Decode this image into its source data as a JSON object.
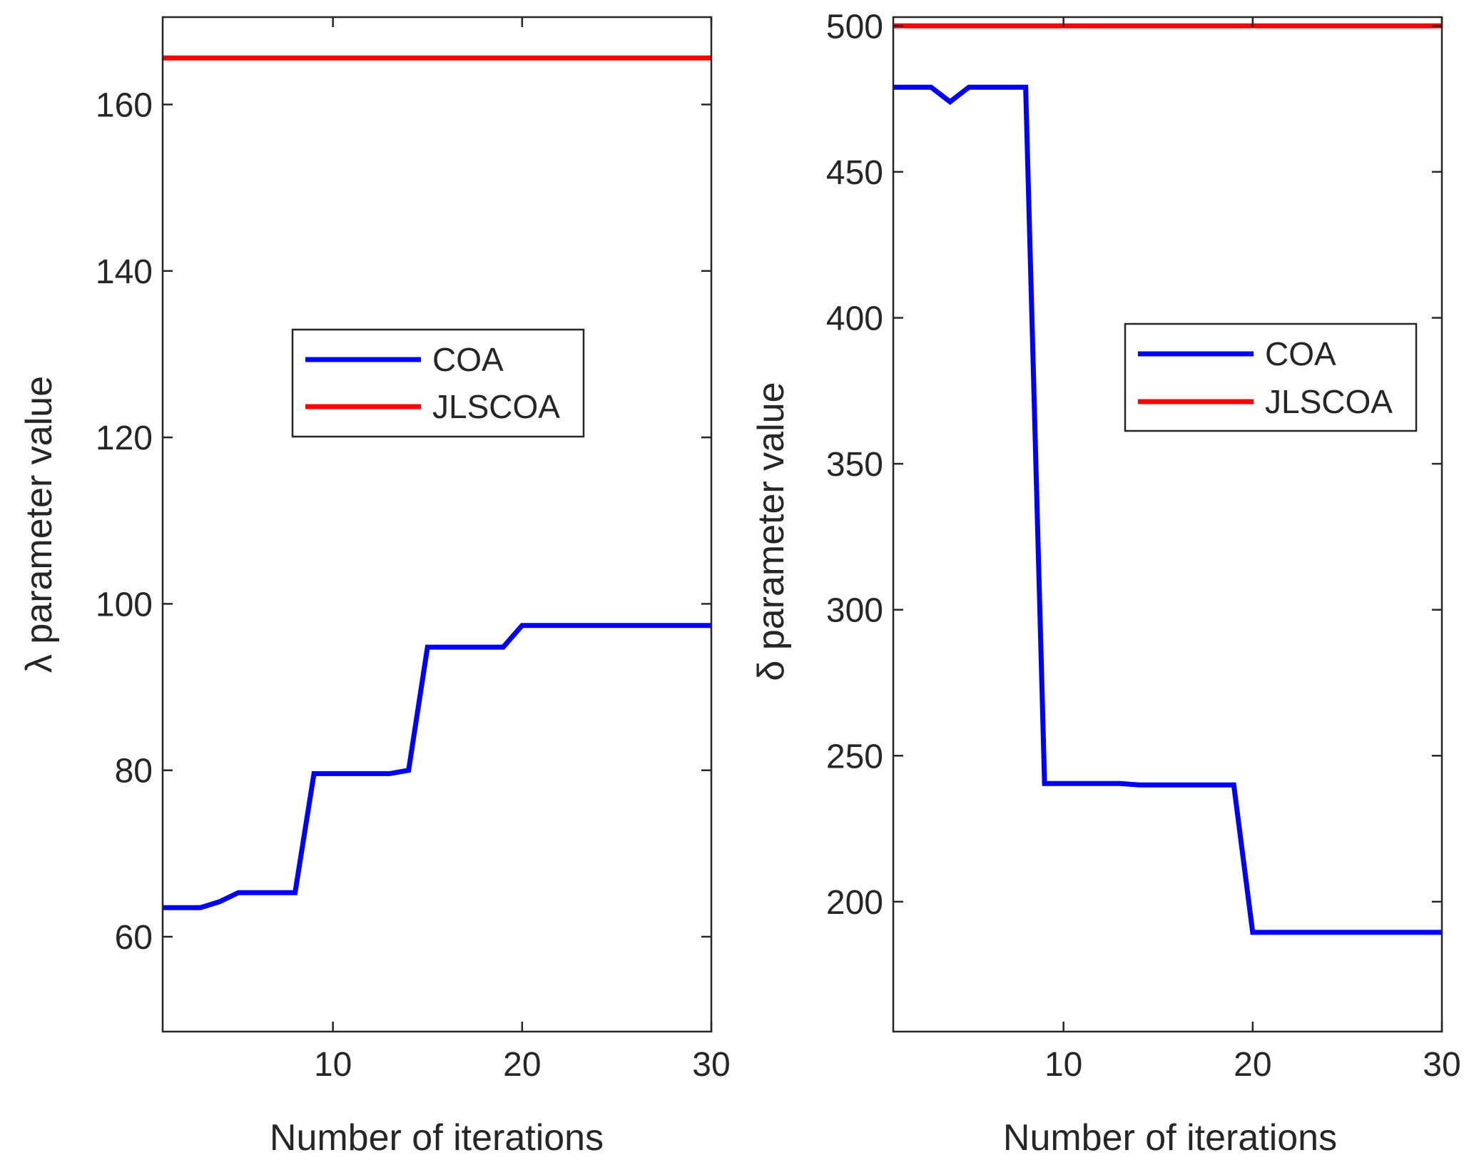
{
  "chart_data": [
    {
      "type": "line",
      "xlabel": "Number of iterations",
      "ylabel": "λ parameter value",
      "xlim": [
        1,
        30
      ],
      "ylim": [
        48.6,
        170.5
      ],
      "xticks": [
        10,
        20,
        30
      ],
      "yticks": [
        60,
        80,
        100,
        120,
        140,
        160
      ],
      "legend_location": "center-right",
      "series": [
        {
          "name": "COA",
          "color": "#0000ff",
          "x": [
            1,
            2,
            3,
            4,
            5,
            6,
            7,
            8,
            9,
            10,
            11,
            12,
            13,
            14,
            15,
            16,
            17,
            18,
            19,
            20,
            21,
            22,
            23,
            24,
            25,
            26,
            27,
            28,
            29,
            30
          ],
          "y": [
            63.5,
            63.5,
            63.5,
            64.2,
            65.3,
            65.3,
            65.3,
            65.3,
            79.6,
            79.6,
            79.6,
            79.6,
            79.6,
            80.0,
            94.8,
            94.8,
            94.8,
            94.8,
            94.8,
            97.4,
            97.4,
            97.4,
            97.4,
            97.4,
            97.4,
            97.4,
            97.4,
            97.4,
            97.4,
            97.4
          ]
        },
        {
          "name": "JLSCOA",
          "color": "#ff0000",
          "x": [
            1,
            30
          ],
          "y": [
            165.6,
            165.6
          ]
        }
      ]
    },
    {
      "type": "line",
      "xlabel": "Number of iterations",
      "ylabel": "δ parameter value",
      "xlim": [
        1,
        30
      ],
      "ylim": [
        155.5,
        503
      ],
      "xticks": [
        10,
        20,
        30
      ],
      "yticks": [
        200,
        250,
        300,
        350,
        400,
        450,
        500
      ],
      "legend_location": "center-right",
      "series": [
        {
          "name": "COA",
          "color": "#0000ff",
          "x": [
            1,
            2,
            3,
            4,
            5,
            6,
            7,
            8,
            9,
            10,
            11,
            12,
            13,
            14,
            15,
            16,
            17,
            18,
            19,
            20,
            21,
            22,
            23,
            24,
            25,
            26,
            27,
            28,
            29,
            30
          ],
          "y": [
            479,
            479,
            479,
            474,
            479,
            479,
            479,
            479,
            240.5,
            240.5,
            240.5,
            240.5,
            240.5,
            240,
            240,
            240,
            240,
            240,
            240,
            189.5,
            189.5,
            189.5,
            189.5,
            189.5,
            189.5,
            189.5,
            189.5,
            189.5,
            189.5,
            189.5
          ]
        },
        {
          "name": "JLSCOA",
          "color": "#ff0000",
          "x": [
            1,
            30
          ],
          "y": [
            500,
            500
          ]
        }
      ]
    }
  ]
}
